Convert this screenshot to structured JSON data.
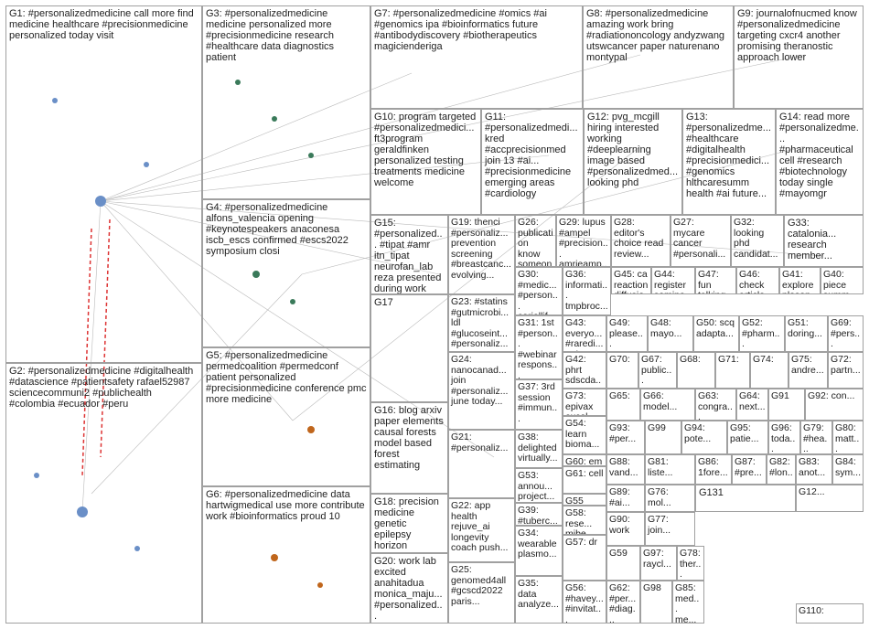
{
  "groups": [
    "G1: #personalizedmedicine call more find medicine healthcare #precisionmedicine personalized today visit",
    "G2: #personalizedmedicine #digitalhealth #datascience #patientsafety rafael52987 sciencecommuni2 #publichealth #colombia #ecuador #peru",
    "G3: #personalizedmedicine medicine personalized more #precisionmedicine research #healthcare data diagnostics patient",
    "G4: #personalizedmedicine alfons_valencia opening #keynotespeakers anaconesa iscb_escs confirmed #escs2022 symposium closi",
    "G5: #personalizedmedicine permedcoalition #permedconf patient personalized #precisionmedicine conference pmc more medicine",
    "G6: #personalizedmedicine data hartwigmedical use more contribute work #bioinformatics proud 10",
    "G7: #personalizedmedicine #omics #ai #genomics ipa #bioinformatics future #antibodydiscovery #biotherapeutics magicienderiga",
    "G8: #personalizedmedicine amazing work bring #radiationoncology andyzwang utswcancer paper naturenano montypal",
    "G9: journalofnucmed know #personalizedmedicine targeting cxcr4 another promising theranostic approach lower",
    "G10: program targeted #personalizedmedici... ft3program geraldfinken personalized testing treatments medicine welcome",
    "G11: #personalizedmedi... kred #accprecisionmed join 13 #ai... #precisionmedicine emerging areas #cardiology",
    "G12: pvg_mcgill hiring interested working #deeplearning image based #personalizedmed... looking phd",
    "G13: #personalizedme... #healthcare #digitalhealth #precisionmedici... #genomics hlthcaresumm health #ai future...",
    "G14: read more #personalizedme... #pharmaceutical cell #research #biotechnology today single #mayomgr",
    "G15: #personalized... #tipat #amr itn_tipat neurofan_lab reza presented during work free",
    "G19: thenci #personaliz... prevention screening #breastcanc... evolving...",
    "G26: publication know someone...",
    "G29: lupus #ampel #precision... amrieamp...",
    "G28: editor's choice read review...",
    "G27: mycare cancer #personali...",
    "G32: looking phd candidat...",
    "G33: catalonia... research member...",
    "G30: #medic... #person... coriellif...",
    "G36: informati... tmpbroc...",
    "G45: ca reaction diffusio...",
    "G44: register semina...",
    "G47: fun talking...",
    "G46: check article...",
    "G41: explore ploson...",
    "G40: piece summ...",
    "G17",
    "G23: #statins #gutmicrobi... ldl #glucoseint... #personaliz...",
    "G31: 1st #person... #webinar respons...",
    "G43: everyo... #raredi... #als...",
    "G49: please...",
    "G48: mayo...",
    "G50: scq adapta...",
    "G52: #pharm...",
    "G51: doring...",
    "G69: #pers...",
    "G24: nanocanad... join #personaliz... june today...",
    "G42: phrt sdscda...",
    "G70:",
    "G67: public...",
    "G68:",
    "G71:",
    "G74:",
    "G75: andre...",
    "G72: partn...",
    "G16: blog arxiv paper elements causal forests model based forest estimating",
    "G37: 3rd session #immun...",
    "G73: epivax excel...",
    "G65:",
    "G66: model...",
    "G63: congra...",
    "G64: next...",
    "G91",
    "G92: con...",
    "G21: #personaliz...",
    "G38: delighted virtually...",
    "G54: learn bioma...",
    "G93: #per...",
    "G99",
    "G94: pote...",
    "G95: patie...",
    "G96: toda...",
    "G79: #hea...",
    "G80: matt...",
    "G60: em mfce...",
    "G53: annou... project...",
    "G88: vand...",
    "G81: liste...",
    "G86: 1fore...",
    "G87: #pre...",
    "G82: #lon...",
    "G83: anot...",
    "G84: sym...",
    "G61: cell",
    "G18: precision medicine genetic epilepsy horizon recent...",
    "G39: #tuberc... affects...",
    "G89: #ai...",
    "G76: mol...",
    "G131",
    "G12...",
    "G22: app health rejuve_ai longevity coach push...",
    "G55",
    "G58: rese... mibe...",
    "G90: work",
    "G77: join...",
    "G34: wearable plasmo...",
    "G57: dr",
    "G59",
    "G97: raycl...",
    "G78: ther...",
    "G20: work lab excited anahitadua monica_maju... #personalized...",
    "G25: genomed4all #gcscd2022 paris...",
    "G35: data analyze...",
    "G56: #havey... #invitat...",
    "G62: #per... #diag...",
    "G98",
    "G85: med... me...",
    "G110:"
  ]
}
